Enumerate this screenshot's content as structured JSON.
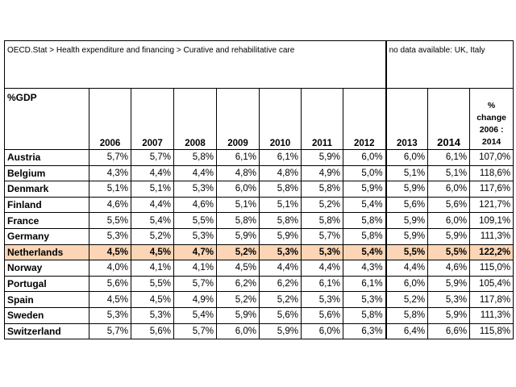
{
  "header": {
    "title": "OECD.Stat > Health expenditure and financing > Curative and rehabilitative care",
    "note": "no data available: UK, Italy"
  },
  "table": {
    "unit": "%GDP",
    "columns": [
      "2006",
      "2007",
      "2008",
      "2009",
      "2010",
      "2011",
      "2012",
      "2013",
      "2014"
    ],
    "change_column": [
      "%",
      "change",
      "2006 :",
      "2014"
    ],
    "highlight_color": "#fbd5b5",
    "rows": [
      {
        "label": "Austria",
        "values": [
          "5,7%",
          "5,7%",
          "5,8%",
          "6,1%",
          "6,1%",
          "5,9%",
          "6,0%",
          "6,0%",
          "6,1%"
        ],
        "change": "107,0%"
      },
      {
        "label": "Belgium",
        "values": [
          "4,3%",
          "4,4%",
          "4,4%",
          "4,8%",
          "4,8%",
          "4,9%",
          "5,0%",
          "5,1%",
          "5,1%"
        ],
        "change": "118,6%"
      },
      {
        "label": "Denmark",
        "values": [
          "5,1%",
          "5,1%",
          "5,3%",
          "6,0%",
          "5,8%",
          "5,8%",
          "5,9%",
          "5,9%",
          "6,0%"
        ],
        "change": "117,6%"
      },
      {
        "label": "Finland",
        "values": [
          "4,6%",
          "4,4%",
          "4,6%",
          "5,1%",
          "5,1%",
          "5,2%",
          "5,4%",
          "5,6%",
          "5,6%"
        ],
        "change": "121,7%"
      },
      {
        "label": "France",
        "values": [
          "5,5%",
          "5,4%",
          "5,5%",
          "5,8%",
          "5,8%",
          "5,8%",
          "5,8%",
          "5,9%",
          "6,0%"
        ],
        "change": "109,1%"
      },
      {
        "label": "Germany",
        "values": [
          "5,3%",
          "5,2%",
          "5,3%",
          "5,9%",
          "5,9%",
          "5,7%",
          "5,8%",
          "5,9%",
          "5,9%"
        ],
        "change": "111,3%"
      },
      {
        "label": "Netherlands",
        "values": [
          "4,5%",
          "4,5%",
          "4,7%",
          "5,2%",
          "5,3%",
          "5,3%",
          "5,4%",
          "5,5%",
          "5,5%"
        ],
        "change": "122,2%",
        "highlighted": true
      },
      {
        "label": "Norway",
        "values": [
          "4,0%",
          "4,1%",
          "4,1%",
          "4,5%",
          "4,4%",
          "4,4%",
          "4,3%",
          "4,4%",
          "4,6%"
        ],
        "change": "115,0%"
      },
      {
        "label": "Portugal",
        "values": [
          "5,6%",
          "5,5%",
          "5,7%",
          "6,2%",
          "6,2%",
          "6,1%",
          "6,1%",
          "6,0%",
          "5,9%"
        ],
        "change": "105,4%"
      },
      {
        "label": "Spain",
        "values": [
          "4,5%",
          "4,5%",
          "4,9%",
          "5,2%",
          "5,2%",
          "5,3%",
          "5,3%",
          "5,2%",
          "5,3%"
        ],
        "change": "117,8%"
      },
      {
        "label": "Sweden",
        "values": [
          "5,3%",
          "5,3%",
          "5,4%",
          "5,9%",
          "5,6%",
          "5,6%",
          "5,8%",
          "5,8%",
          "5,9%"
        ],
        "change": "111,3%"
      },
      {
        "label": "Switzerland",
        "values": [
          "5,7%",
          "5,6%",
          "5,7%",
          "6,0%",
          "5,9%",
          "6,0%",
          "6,3%",
          "6,4%",
          "6,6%"
        ],
        "change": "115,8%"
      }
    ]
  }
}
